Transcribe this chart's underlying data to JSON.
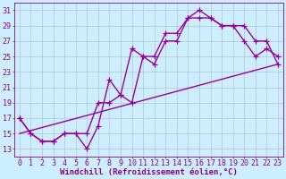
{
  "xlabel": "Windchill (Refroidissement éolien,°C)",
  "bg_color": "#cceeff",
  "line_color": "#990099",
  "grid_color": "#aabbcc",
  "xlim": [
    -0.5,
    23.5
  ],
  "ylim": [
    12,
    32
  ],
  "xticks": [
    0,
    1,
    2,
    3,
    4,
    5,
    6,
    7,
    8,
    9,
    10,
    11,
    12,
    13,
    14,
    15,
    16,
    17,
    18,
    19,
    20,
    21,
    22,
    23
  ],
  "yticks": [
    13,
    15,
    17,
    19,
    21,
    23,
    25,
    27,
    29,
    31
  ],
  "line1_x": [
    0,
    1,
    2,
    3,
    4,
    5,
    6,
    7,
    8,
    9,
    10,
    11,
    12,
    13,
    14,
    15,
    16,
    17,
    18,
    19,
    20,
    21,
    22,
    23
  ],
  "line1_y": [
    17,
    15,
    14,
    14,
    15,
    15,
    13,
    16,
    22,
    20,
    26,
    25,
    25,
    28,
    28,
    30,
    31,
    30,
    29,
    29,
    27,
    25,
    26,
    25
  ],
  "line2_x": [
    0,
    1,
    2,
    3,
    4,
    5,
    6,
    7,
    8,
    9,
    10,
    11,
    12,
    13,
    14,
    15,
    16,
    17,
    18,
    19,
    20,
    21,
    22,
    23
  ],
  "line2_y": [
    17,
    15,
    14,
    14,
    15,
    15,
    15,
    19,
    19,
    20,
    19,
    25,
    24,
    27,
    27,
    30,
    30,
    30,
    29,
    29,
    29,
    27,
    27,
    24
  ],
  "line3_x": [
    0,
    23
  ],
  "line3_y": [
    15,
    24
  ],
  "marker": "+",
  "markersize": 4,
  "linewidth": 1.0,
  "xlabel_fontsize": 6.5,
  "tick_fontsize": 6,
  "axis_color": "#880088"
}
